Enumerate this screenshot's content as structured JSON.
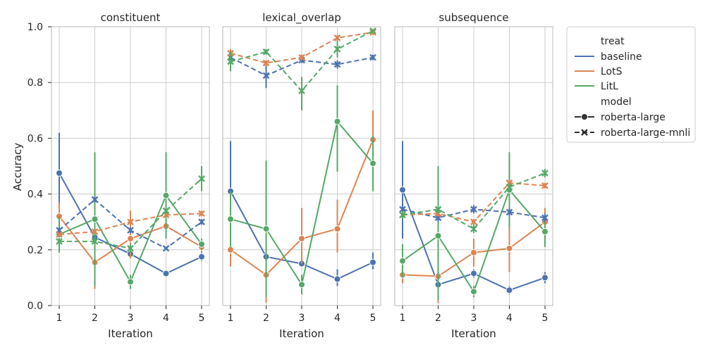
{
  "chart_data": {
    "type": "line",
    "layout": "facet",
    "ylabel": "Accuracy",
    "xlabel": "Iteration",
    "ylim": [
      0,
      1
    ],
    "yticks": [
      0.0,
      0.2,
      0.4,
      0.6,
      0.8,
      1.0
    ],
    "ytick_labels": [
      "0.0",
      "0.2",
      "0.4",
      "0.6",
      "0.8",
      "1.0"
    ],
    "x": [
      1,
      2,
      3,
      4,
      5
    ],
    "xtick_labels": [
      "1",
      "2",
      "3",
      "4",
      "5"
    ],
    "grid": true,
    "legend": {
      "placement": "right outside",
      "hue_title": "treat",
      "style_title": "model",
      "hue_entries": [
        {
          "name": "baseline",
          "color": "#4c72b0"
        },
        {
          "name": "LotS",
          "color": "#dd8452"
        },
        {
          "name": "LitL",
          "color": "#55a868"
        }
      ],
      "style_entries": [
        {
          "name": "roberta-large",
          "marker": "circle",
          "line": "solid"
        },
        {
          "name": "roberta-large-mnli",
          "marker": "x",
          "line": "dashed"
        }
      ]
    },
    "panels": [
      {
        "title": "constituent",
        "series": [
          {
            "treat": "baseline",
            "model": "roberta-large",
            "values": [
              0.475,
              0.245,
              0.185,
              0.115,
              0.175
            ],
            "err_low": [
              0.33,
              0.23,
              0.17,
              0.11,
              0.16
            ],
            "err_high": [
              0.62,
              0.26,
              0.2,
              0.12,
              0.19
            ]
          },
          {
            "treat": "LotS",
            "model": "roberta-large",
            "values": [
              0.32,
              0.155,
              0.24,
              0.285,
              0.21
            ],
            "err_low": [
              0.27,
              0.06,
              0.17,
              0.27,
              0.19
            ],
            "err_high": [
              0.37,
              0.25,
              0.34,
              0.3,
              0.23
            ]
          },
          {
            "treat": "LitL",
            "model": "roberta-large",
            "values": [
              0.255,
              0.31,
              0.085,
              0.395,
              0.22
            ],
            "err_low": [
              0.19,
              0.07,
              0.06,
              0.24,
              0.2
            ],
            "err_high": [
              0.32,
              0.55,
              0.11,
              0.55,
              0.24
            ]
          },
          {
            "treat": "baseline",
            "model": "roberta-large-mnli",
            "values": [
              0.27,
              0.38,
              0.27,
              0.205,
              0.3
            ],
            "err_low": [
              0.26,
              0.37,
              0.26,
              0.2,
              0.29
            ],
            "err_high": [
              0.28,
              0.39,
              0.28,
              0.21,
              0.31
            ]
          },
          {
            "treat": "LotS",
            "model": "roberta-large-mnli",
            "values": [
              0.255,
              0.265,
              0.3,
              0.325,
              0.33
            ],
            "err_low": [
              0.25,
              0.26,
              0.29,
              0.32,
              0.32
            ],
            "err_high": [
              0.26,
              0.27,
              0.31,
              0.33,
              0.34
            ]
          },
          {
            "treat": "LitL",
            "model": "roberta-large-mnli",
            "values": [
              0.23,
              0.23,
              0.205,
              0.34,
              0.455
            ],
            "err_low": [
              0.22,
              0.22,
              0.19,
              0.33,
              0.41
            ],
            "err_high": [
              0.24,
              0.24,
              0.22,
              0.35,
              0.5
            ]
          }
        ]
      },
      {
        "title": "lexical_overlap",
        "series": [
          {
            "treat": "baseline",
            "model": "roberta-large",
            "values": [
              0.41,
              0.175,
              0.15,
              0.095,
              0.155
            ],
            "err_low": [
              0.25,
              0.16,
              0.14,
              0.07,
              0.13
            ],
            "err_high": [
              0.59,
              0.19,
              0.16,
              0.13,
              0.19
            ]
          },
          {
            "treat": "LotS",
            "model": "roberta-large",
            "values": [
              0.2,
              0.11,
              0.24,
              0.275,
              0.595
            ],
            "err_low": [
              0.14,
              0.01,
              0.15,
              0.19,
              0.5
            ],
            "err_high": [
              0.26,
              0.21,
              0.35,
              0.38,
              0.7
            ]
          },
          {
            "treat": "LitL",
            "model": "roberta-large",
            "values": [
              0.31,
              0.275,
              0.075,
              0.66,
              0.51
            ],
            "err_low": [
              0.21,
              0.03,
              0.04,
              0.48,
              0.41
            ],
            "err_high": [
              0.41,
              0.52,
              0.11,
              0.79,
              0.61
            ]
          },
          {
            "treat": "baseline",
            "model": "roberta-large-mnli",
            "values": [
              0.89,
              0.825,
              0.88,
              0.865,
              0.89
            ],
            "err_low": [
              0.88,
              0.78,
              0.87,
              0.85,
              0.88
            ],
            "err_high": [
              0.9,
              0.87,
              0.89,
              0.88,
              0.9
            ]
          },
          {
            "treat": "LotS",
            "model": "roberta-large-mnli",
            "values": [
              0.905,
              0.87,
              0.89,
              0.96,
              0.98
            ],
            "err_low": [
              0.89,
              0.86,
              0.88,
              0.95,
              0.97
            ],
            "err_high": [
              0.92,
              0.88,
              0.9,
              0.97,
              0.99
            ]
          },
          {
            "treat": "LitL",
            "model": "roberta-large-mnli",
            "values": [
              0.875,
              0.91,
              0.77,
              0.92,
              0.985
            ],
            "err_low": [
              0.84,
              0.9,
              0.7,
              0.89,
              0.98
            ],
            "err_high": [
              0.91,
              0.92,
              0.82,
              0.95,
              0.99
            ]
          }
        ]
      },
      {
        "title": "subsequence",
        "series": [
          {
            "treat": "baseline",
            "model": "roberta-large",
            "values": [
              0.415,
              0.075,
              0.115,
              0.055,
              0.1
            ],
            "err_low": [
              0.24,
              0.06,
              0.1,
              0.04,
              0.08
            ],
            "err_high": [
              0.59,
              0.09,
              0.13,
              0.07,
              0.12
            ]
          },
          {
            "treat": "LotS",
            "model": "roberta-large",
            "values": [
              0.11,
              0.105,
              0.19,
              0.205,
              0.3
            ],
            "err_low": [
              0.08,
              0.01,
              0.14,
              0.12,
              0.25
            ],
            "err_high": [
              0.14,
              0.2,
              0.24,
              0.28,
              0.35
            ]
          },
          {
            "treat": "LitL",
            "model": "roberta-large",
            "values": [
              0.16,
              0.25,
              0.05,
              0.415,
              0.265
            ],
            "err_low": [
              0.1,
              0.02,
              0.03,
              0.28,
              0.21
            ],
            "err_high": [
              0.22,
              0.5,
              0.07,
              0.55,
              0.32
            ]
          },
          {
            "treat": "baseline",
            "model": "roberta-large-mnli",
            "values": [
              0.345,
              0.315,
              0.345,
              0.335,
              0.315
            ],
            "err_low": [
              0.33,
              0.3,
              0.33,
              0.32,
              0.3
            ],
            "err_high": [
              0.36,
              0.33,
              0.36,
              0.35,
              0.33
            ]
          },
          {
            "treat": "LotS",
            "model": "roberta-large-mnli",
            "values": [
              0.325,
              0.33,
              0.3,
              0.44,
              0.43
            ],
            "err_low": [
              0.31,
              0.32,
              0.29,
              0.43,
              0.42
            ],
            "err_high": [
              0.34,
              0.34,
              0.31,
              0.45,
              0.44
            ]
          },
          {
            "treat": "LitL",
            "model": "roberta-large-mnli",
            "values": [
              0.325,
              0.345,
              0.275,
              0.425,
              0.475
            ],
            "err_low": [
              0.31,
              0.33,
              0.26,
              0.41,
              0.46
            ],
            "err_high": [
              0.34,
              0.36,
              0.29,
              0.44,
              0.49
            ]
          }
        ]
      }
    ]
  }
}
